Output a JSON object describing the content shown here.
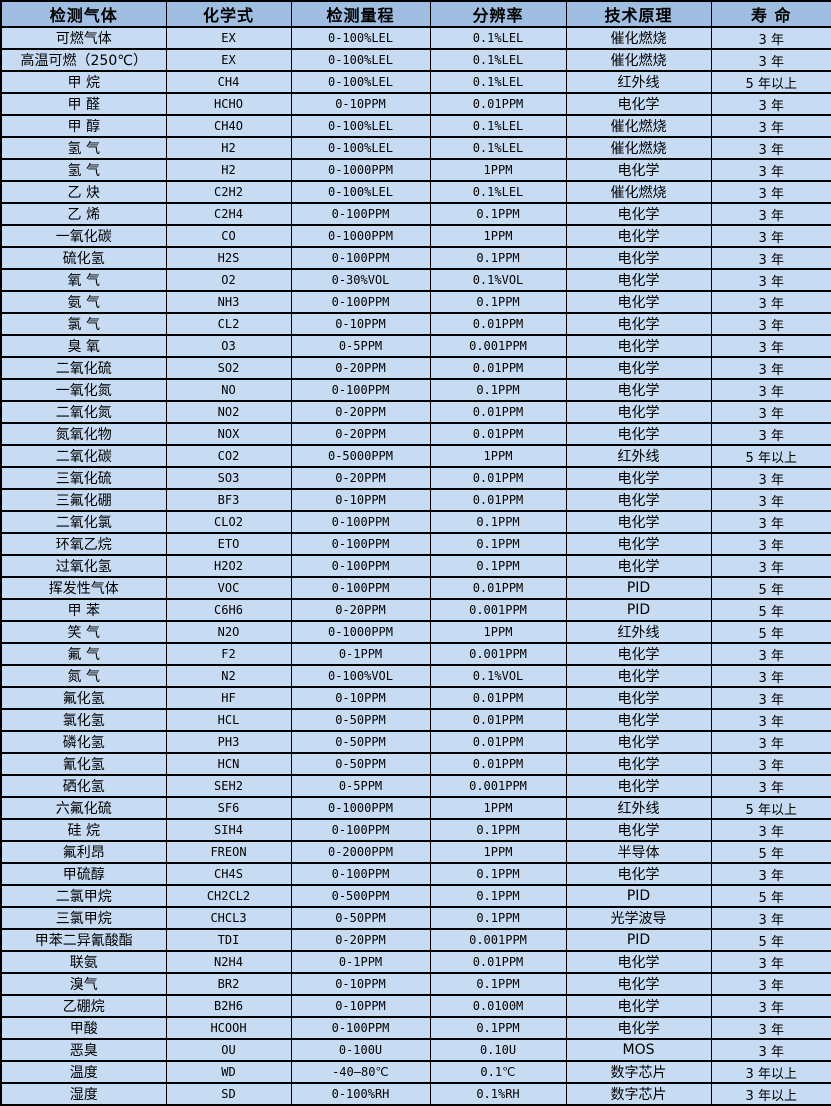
{
  "colors": {
    "header_background": "#9FBEE2",
    "row_background": "#C7DCF3",
    "border": "#000000",
    "text": "#000000"
  },
  "table": {
    "headers": [
      "检测气体",
      "化学式",
      "检测量程",
      "分辨率",
      "技术原理",
      "寿 命"
    ],
    "column_keys": [
      "gas-name",
      "chemical-formula",
      "detection-range",
      "resolution",
      "technology",
      "lifespan"
    ],
    "rows": [
      [
        "可燃气体",
        "EX",
        "0-100%LEL",
        "0.1%LEL",
        "催化燃烧",
        "3 年"
      ],
      [
        "高温可燃（250℃）",
        "EX",
        "0-100%LEL",
        "0.1%LEL",
        "催化燃烧",
        "3 年"
      ],
      [
        "甲 烷",
        "CH4",
        "0-100%LEL",
        "0.1%LEL",
        "红外线",
        "5 年以上"
      ],
      [
        "甲 醛",
        "HCHO",
        "0-10PPM",
        "0.01PPM",
        "电化学",
        "3 年"
      ],
      [
        "甲 醇",
        "CH4O",
        "0-100%LEL",
        "0.1%LEL",
        "催化燃烧",
        "3 年"
      ],
      [
        "氢 气",
        "H2",
        "0-100%LEL",
        "0.1%LEL",
        "催化燃烧",
        "3 年"
      ],
      [
        "氢 气",
        "H2",
        "0-1000PPM",
        "1PPM",
        "电化学",
        "3 年"
      ],
      [
        "乙 炔",
        "C2H2",
        "0-100%LEL",
        "0.1%LEL",
        "催化燃烧",
        "3 年"
      ],
      [
        "乙 烯",
        "C2H4",
        "0-100PPM",
        "0.1PPM",
        "电化学",
        "3 年"
      ],
      [
        "一氧化碳",
        "CO",
        "0-1000PPM",
        "1PPM",
        "电化学",
        "3 年"
      ],
      [
        "硫化氢",
        "H2S",
        "0-100PPM",
        "0.1PPM",
        "电化学",
        "3 年"
      ],
      [
        "氧 气",
        "O2",
        "0-30%VOL",
        "0.1%VOL",
        "电化学",
        "3 年"
      ],
      [
        "氨 气",
        "NH3",
        "0-100PPM",
        "0.1PPM",
        "电化学",
        "3 年"
      ],
      [
        "氯 气",
        "CL2",
        "0-10PPM",
        "0.01PPM",
        "电化学",
        "3 年"
      ],
      [
        "臭 氧",
        "O3",
        "0-5PPM",
        "0.001PPM",
        "电化学",
        "3 年"
      ],
      [
        "二氧化硫",
        "SO2",
        "0-20PPM",
        "0.01PPM",
        "电化学",
        "3 年"
      ],
      [
        "一氧化氮",
        "NO",
        "0-100PPM",
        "0.1PPM",
        "电化学",
        "3 年"
      ],
      [
        "二氧化氮",
        "NO2",
        "0-20PPM",
        "0.01PPM",
        "电化学",
        "3 年"
      ],
      [
        "氮氧化物",
        "NOX",
        "0-20PPM",
        "0.01PPM",
        "电化学",
        "3 年"
      ],
      [
        "二氧化碳",
        "CO2",
        "0-5000PPM",
        "1PPM",
        "红外线",
        "5 年以上"
      ],
      [
        "三氧化硫",
        "SO3",
        "0-20PPM",
        "0.01PPM",
        "电化学",
        "3 年"
      ],
      [
        "三氟化硼",
        "BF3",
        "0-10PPM",
        "0.01PPM",
        "电化学",
        "3 年"
      ],
      [
        "二氧化氯",
        "CLO2",
        "0-100PPM",
        "0.1PPM",
        "电化学",
        "3 年"
      ],
      [
        "环氧乙烷",
        "ETO",
        "0-100PPM",
        "0.1PPM",
        "电化学",
        "3 年"
      ],
      [
        "过氧化氢",
        "H2O2",
        "0-100PPM",
        "0.1PPM",
        "电化学",
        "3 年"
      ],
      [
        "挥发性气体",
        "VOC",
        "0-100PPM",
        "0.01PPM",
        "PID",
        "5 年"
      ],
      [
        "甲 苯",
        "C6H6",
        "0-20PPM",
        "0.001PPM",
        "PID",
        "5 年"
      ],
      [
        "笑 气",
        "N2O",
        "0-1000PPM",
        "1PPM",
        "红外线",
        "5 年"
      ],
      [
        "氟 气",
        "F2",
        "0-1PPM",
        "0.001PPM",
        "电化学",
        "3 年"
      ],
      [
        "氮 气",
        "N2",
        "0-100%VOL",
        "0.1%VOL",
        "电化学",
        "3 年"
      ],
      [
        "氟化氢",
        "HF",
        "0-10PPM",
        "0.01PPM",
        "电化学",
        "3 年"
      ],
      [
        "氯化氢",
        "HCL",
        "0-50PPM",
        "0.01PPM",
        "电化学",
        "3 年"
      ],
      [
        "磷化氢",
        "PH3",
        "0-50PPM",
        "0.01PPM",
        "电化学",
        "3 年"
      ],
      [
        "氰化氢",
        "HCN",
        "0-50PPM",
        "0.01PPM",
        "电化学",
        "3 年"
      ],
      [
        "硒化氢",
        "SEH2",
        "0-5PPM",
        "0.001PPM",
        "电化学",
        "3 年"
      ],
      [
        "六氟化硫",
        "SF6",
        "0-1000PPM",
        "1PPM",
        "红外线",
        "5 年以上"
      ],
      [
        "硅 烷",
        "SIH4",
        "0-100PPM",
        "0.1PPM",
        "电化学",
        "3 年"
      ],
      [
        "氟利昂",
        "FREON",
        "0-2000PPM",
        "1PPM",
        "半导体",
        "5 年"
      ],
      [
        "甲硫醇",
        "CH4S",
        "0-100PPM",
        "0.1PPM",
        "电化学",
        "3 年"
      ],
      [
        "二氯甲烷",
        "CH2CL2",
        "0-500PPM",
        "0.1PPM",
        "PID",
        "5 年"
      ],
      [
        "三氯甲烷",
        "CHCL3",
        "0-50PPM",
        "0.1PPM",
        "光学波导",
        "3 年"
      ],
      [
        "甲苯二异氰酸酯",
        "TDI",
        "0-20PPM",
        "0.001PPM",
        "PID",
        "5 年"
      ],
      [
        "联氨",
        "N2H4",
        "0-1PPM",
        "0.01PPM",
        "电化学",
        "3 年"
      ],
      [
        "溴气",
        "BR2",
        "0-10PPM",
        "0.1PPM",
        "电化学",
        "3 年"
      ],
      [
        "乙硼烷",
        "B2H6",
        "0-10PPM",
        "0.0100M",
        "电化学",
        "3 年"
      ],
      [
        "甲酸",
        "HCOOH",
        "0-100PPM",
        "0.1PPM",
        "电化学",
        "3 年"
      ],
      [
        "恶臭",
        "OU",
        "0-100U",
        "0.10U",
        "MOS",
        "3 年"
      ],
      [
        "温度",
        "WD",
        "-40—80℃",
        "0.1℃",
        "数字芯片",
        "3 年以上"
      ],
      [
        "湿度",
        "SD",
        "0-100%RH",
        "0.1%RH",
        "数字芯片",
        "3 年以上"
      ]
    ]
  }
}
